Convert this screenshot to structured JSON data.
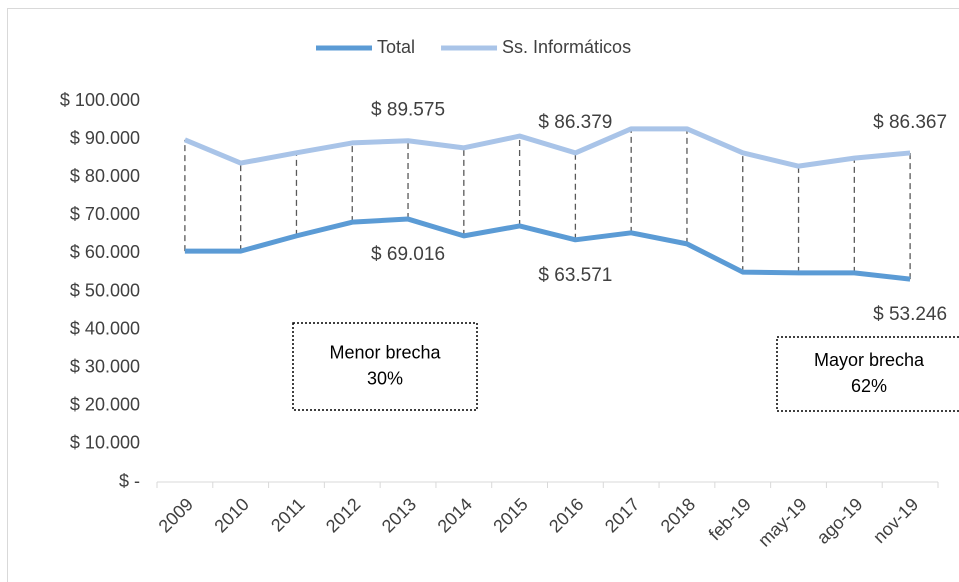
{
  "chart_data": {
    "type": "line",
    "categories": [
      "2009",
      "2010",
      "2011",
      "2012",
      "2013",
      "2014",
      "2015",
      "2016",
      "2017",
      "2018",
      "feb-19",
      "may-19",
      "ago-19",
      "nov-19"
    ],
    "series": [
      {
        "name": "Total",
        "color": "#5b9bd5",
        "values": [
          60600,
          60600,
          64600,
          68200,
          69016,
          64600,
          67200,
          63571,
          65400,
          62500,
          55100,
          54900,
          54900,
          53246
        ],
        "value_labels": [
          null,
          null,
          null,
          null,
          "$ 69.016",
          null,
          null,
          "$ 63.571",
          null,
          null,
          null,
          null,
          null,
          "$ 53.246"
        ]
      },
      {
        "name": "Ss. Informáticos",
        "color": "#a9c4e8",
        "values": [
          89800,
          83700,
          86400,
          89000,
          89575,
          87700,
          90800,
          86379,
          92700,
          92700,
          86400,
          82900,
          85000,
          86367
        ],
        "value_labels": [
          null,
          null,
          null,
          null,
          "$ 89.575",
          null,
          null,
          "$ 86.379",
          null,
          null,
          null,
          null,
          null,
          "$ 86.367"
        ]
      }
    ],
    "ylim": [
      0,
      100000
    ],
    "yticks": [
      {
        "value": 0,
        "label": "$ -"
      },
      {
        "value": 10000,
        "label": "$ 10.000"
      },
      {
        "value": 20000,
        "label": "$ 20.000"
      },
      {
        "value": 30000,
        "label": "$ 30.000"
      },
      {
        "value": 40000,
        "label": "$ 40.000"
      },
      {
        "value": 50000,
        "label": "$ 50.000"
      },
      {
        "value": 60000,
        "label": "$ 60.000"
      },
      {
        "value": 70000,
        "label": "$ 70.000"
      },
      {
        "value": 80000,
        "label": "$ 80.000"
      },
      {
        "value": 90000,
        "label": "$ 90.000"
      },
      {
        "value": 100000,
        "label": "$ 100.000"
      }
    ],
    "legend": "top",
    "drop_lines": true,
    "annotations": [
      {
        "lines": [
          "Menor brecha",
          "30%"
        ]
      },
      {
        "lines": [
          "Mayor brecha",
          "62%"
        ]
      }
    ]
  }
}
